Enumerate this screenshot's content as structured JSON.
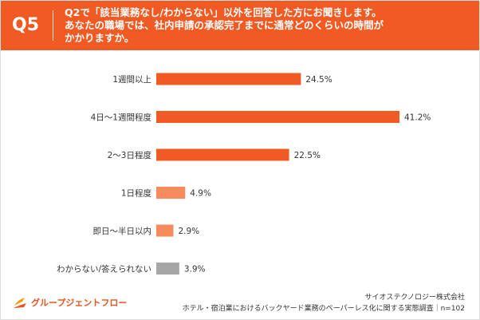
{
  "header": {
    "question_number": "Q5",
    "question_lines": [
      "Q2で「該当業務なし/わからない」以外を回答した方にお聞きします。",
      "あなたの職場では、社内申請の承認完了までに通常どのくらいの時間が",
      "かかりますか。"
    ]
  },
  "chart_data": {
    "type": "bar",
    "orientation": "horizontal",
    "title": "Q2で「該当業務なし/わからない」以外を回答した方にお聞きします。あなたの職場では、社内申請の承認完了までに通常どのくらいの時間がかかりますか。",
    "categories": [
      "1週間以上",
      "4日〜1週間程度",
      "2〜3日程度",
      "1日程度",
      "即日〜半日以内",
      "わからない/答えられない"
    ],
    "values": [
      24.5,
      41.2,
      22.5,
      4.9,
      2.9,
      3.9
    ],
    "value_labels": [
      "24.5%",
      "41.2%",
      "22.5%",
      "4.9%",
      "2.9%",
      "3.9%"
    ],
    "unit": "%",
    "xlim": [
      0,
      41.2
    ],
    "grid": false,
    "colors": [
      "#f15a22",
      "#f15a22",
      "#f15a22",
      "#f58a5c",
      "#f58a5c",
      "#a6a6a6"
    ]
  },
  "footer": {
    "logo_text": "グループジェントフロー",
    "company": "サイオステクノロジー株式会社",
    "survey": "ホテル・宿泊業におけるバックヤード業務のペーパーレス化に関する実態調査｜n=102"
  }
}
